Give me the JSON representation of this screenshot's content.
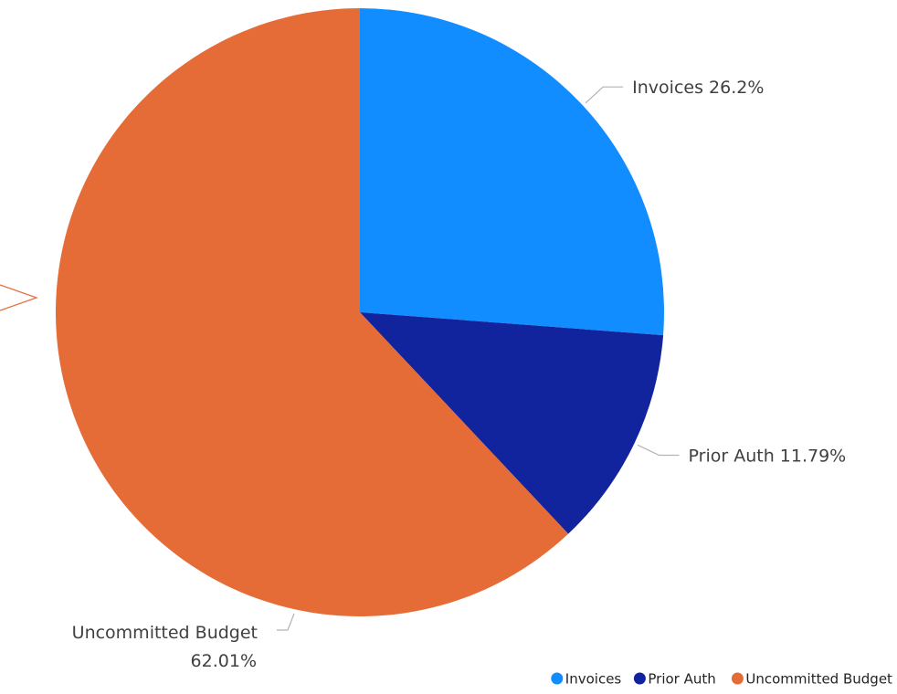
{
  "chart_data": {
    "type": "pie",
    "title": "",
    "slices": [
      {
        "label": "Invoices",
        "value": 26.2,
        "value_label": "26.2%",
        "color": "#118DFF"
      },
      {
        "label": "Prior Auth",
        "value": 11.79,
        "value_label": "11.79%",
        "color": "#12239E"
      },
      {
        "label": "Uncommitted Budget",
        "value": 62.01,
        "value_label": "62.01%",
        "color": "#E66C37"
      }
    ],
    "legend_position": "bottom-right",
    "start_angle": "top, clockwise"
  },
  "legend": {
    "items": [
      {
        "label": "Invoices",
        "color": "#118DFF"
      },
      {
        "label": "Prior Auth",
        "color": "#12239E"
      },
      {
        "label": "Uncommitted Budget",
        "color": "#E66C37"
      }
    ]
  },
  "colors": {
    "leader_line": "#B3B3B3",
    "label_text": "#404040",
    "cursor": "#E66C37"
  }
}
